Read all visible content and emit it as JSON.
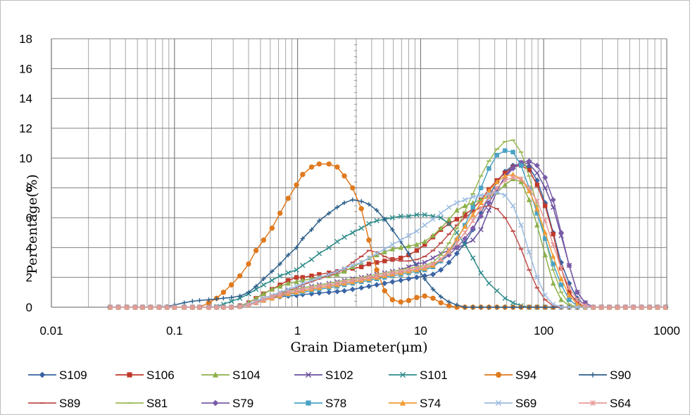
{
  "chart_data": {
    "type": "line",
    "title": "",
    "xlabel": "Grain Diameter(μm)",
    "ylabel": "Percentage(%)",
    "xscale": "log",
    "xlim": [
      0.01,
      1000
    ],
    "ylim": [
      0,
      18
    ],
    "x_ticks": [
      "0.01",
      "0.1",
      "1",
      "10",
      "100",
      "1000"
    ],
    "y_ticks": [
      "0",
      "2",
      "4",
      "6",
      "8",
      "10",
      "12",
      "14",
      "16",
      "18"
    ],
    "grid": true,
    "legend_position": "bottom",
    "x": [
      0.03,
      0.035,
      0.041,
      0.048,
      0.055,
      0.064,
      0.075,
      0.087,
      0.1,
      0.12,
      0.14,
      0.16,
      0.19,
      0.22,
      0.25,
      0.29,
      0.34,
      0.4,
      0.46,
      0.53,
      0.62,
      0.72,
      0.84,
      0.98,
      1.1,
      1.3,
      1.5,
      1.8,
      2.1,
      2.4,
      2.8,
      3.3,
      3.8,
      4.4,
      5.1,
      5.9,
      6.9,
      8,
      9.3,
      10.8,
      12.6,
      14.6,
      17,
      19.7,
      22.9,
      26.6,
      30.9,
      35.9,
      41.7,
      48.5,
      56.3,
      65.5,
      76.1,
      88.4,
      102.7,
      119.4,
      138.7,
      161.2,
      187.4,
      217.7,
      253,
      294,
      341.8,
      397.2,
      461.6,
      536.5,
      623.5,
      724.6,
      842,
      978.6
    ],
    "series": [
      {
        "name": "S109",
        "color": "#3a64a4",
        "marker": "diamond",
        "values": [
          0,
          0,
          0,
          0,
          0,
          0,
          0,
          0,
          0,
          0,
          0,
          0,
          0,
          0,
          0,
          0,
          0.1,
          0.2,
          0.35,
          0.5,
          0.6,
          0.7,
          0.75,
          0.8,
          0.85,
          0.9,
          0.95,
          1.0,
          1.05,
          1.1,
          1.2,
          1.3,
          1.4,
          1.5,
          1.6,
          1.7,
          1.8,
          1.9,
          2.0,
          2.1,
          2.2,
          2.5,
          3.0,
          3.6,
          4.3,
          5.2,
          6.3,
          7.4,
          8.4,
          9.1,
          9.5,
          9.6,
          9.4,
          8.5,
          7.0,
          5.0,
          3.0,
          1.6,
          0.6,
          0.1,
          0,
          0,
          0,
          0,
          0,
          0,
          0,
          0,
          0,
          0
        ]
      },
      {
        "name": "S106",
        "color": "#c0392b",
        "marker": "square",
        "values": [
          0,
          0,
          0,
          0,
          0,
          0,
          0,
          0,
          0,
          0,
          0,
          0,
          0,
          0,
          0,
          0,
          0.1,
          0.3,
          0.6,
          0.9,
          1.2,
          1.5,
          1.8,
          2.0,
          2.0,
          2.1,
          2.2,
          2.3,
          2.4,
          2.5,
          2.6,
          2.7,
          2.9,
          3.0,
          3.1,
          3.2,
          3.3,
          3.5,
          3.8,
          4.2,
          4.7,
          5.2,
          5.6,
          5.9,
          6.2,
          6.6,
          7.2,
          7.9,
          8.5,
          9.0,
          9.4,
          9.5,
          9.2,
          8.2,
          6.8,
          4.9,
          2.6,
          1.0,
          0.3,
          0,
          0,
          0,
          0,
          0,
          0,
          0,
          0,
          0,
          0,
          0
        ]
      },
      {
        "name": "S104",
        "color": "#8db04a",
        "marker": "triangle",
        "values": [
          0,
          0,
          0,
          0,
          0,
          0,
          0,
          0,
          0,
          0,
          0,
          0,
          0,
          0,
          0,
          0,
          0.1,
          0.3,
          0.6,
          0.9,
          1.2,
          1.4,
          1.6,
          1.7,
          1.8,
          1.9,
          2.0,
          2.1,
          2.2,
          2.4,
          2.7,
          3.0,
          3.3,
          3.5,
          3.7,
          3.9,
          4.0,
          4.1,
          4.2,
          4.4,
          4.8,
          5.3,
          5.9,
          6.5,
          6.8,
          7.0,
          7.2,
          7.4,
          7.7,
          8.2,
          8.6,
          8.4,
          7.2,
          5.5,
          3.5,
          1.6,
          0.5,
          0.1,
          0,
          0,
          0,
          0,
          0,
          0,
          0,
          0,
          0,
          0,
          0,
          0
        ]
      },
      {
        "name": "S102",
        "color": "#6a4f9c",
        "marker": "x",
        "values": [
          0,
          0,
          0,
          0,
          0,
          0,
          0,
          0,
          0,
          0,
          0,
          0,
          0,
          0,
          0,
          0,
          0.05,
          0.2,
          0.4,
          0.6,
          0.8,
          1.0,
          1.1,
          1.2,
          1.3,
          1.4,
          1.5,
          1.6,
          1.7,
          1.8,
          1.9,
          2.0,
          2.1,
          2.2,
          2.3,
          2.4,
          2.5,
          2.7,
          2.9,
          3.0,
          3.3,
          3.6,
          3.8,
          4.0,
          4.2,
          4.5,
          5.2,
          6.5,
          7.8,
          8.8,
          9.4,
          9.7,
          9.6,
          9.0,
          8.0,
          6.7,
          4.8,
          2.8,
          1.0,
          0.3,
          0,
          0,
          0,
          0,
          0,
          0,
          0,
          0,
          0,
          0
        ]
      },
      {
        "name": "S101",
        "color": "#2e8b8b",
        "marker": "x",
        "values": [
          0,
          0,
          0,
          0,
          0,
          0,
          0,
          0,
          0,
          0,
          0,
          0,
          0,
          0.05,
          0.2,
          0.4,
          0.6,
          0.9,
          1.2,
          1.5,
          1.8,
          2.1,
          2.3,
          2.5,
          2.8,
          3.2,
          3.6,
          4.0,
          4.4,
          4.7,
          5.0,
          5.3,
          5.6,
          5.8,
          5.9,
          6.0,
          6.1,
          6.1,
          6.2,
          6.2,
          6.1,
          6.0,
          5.6,
          5.0,
          4.2,
          3.3,
          2.3,
          1.6,
          1.1,
          0.6,
          0.3,
          0.1,
          0,
          0,
          0,
          0,
          0,
          0,
          0,
          0,
          0,
          0,
          0,
          0,
          0,
          0,
          0,
          0,
          0,
          0
        ]
      },
      {
        "name": "S94",
        "color": "#e07a1f",
        "marker": "circle",
        "values": [
          0,
          0,
          0,
          0,
          0,
          0,
          0,
          0,
          0,
          0,
          0,
          0,
          0.3,
          0.6,
          1.0,
          1.5,
          2.1,
          2.9,
          3.8,
          4.5,
          5.3,
          6.3,
          7.3,
          8.2,
          8.9,
          9.4,
          9.6,
          9.6,
          9.4,
          8.8,
          8.0,
          6.6,
          4.5,
          2.5,
          1.1,
          0.5,
          0.35,
          0.45,
          0.65,
          0.75,
          0.6,
          0.3,
          0.1,
          0,
          0,
          0,
          0,
          0,
          0,
          0,
          0,
          0,
          0,
          0,
          0,
          0,
          0,
          0,
          0,
          0,
          0,
          0,
          0,
          0,
          0,
          0,
          0,
          0,
          0,
          0
        ]
      },
      {
        "name": "S90",
        "color": "#2c5f8a",
        "marker": "plus",
        "values": [
          0,
          0,
          0,
          0,
          0,
          0,
          0,
          0.05,
          0.15,
          0.3,
          0.4,
          0.45,
          0.5,
          0.55,
          0.6,
          0.65,
          0.75,
          1.0,
          1.4,
          1.9,
          2.4,
          2.9,
          3.5,
          4.0,
          4.6,
          5.2,
          5.8,
          6.3,
          6.7,
          7.0,
          7.2,
          7.1,
          6.9,
          6.5,
          5.9,
          5.2,
          4.4,
          3.6,
          2.7,
          1.9,
          1.2,
          0.7,
          0.35,
          0.15,
          0,
          0,
          0,
          0,
          0,
          0,
          0,
          0,
          0,
          0,
          0,
          0,
          0,
          0,
          0,
          0,
          0,
          0,
          0,
          0,
          0,
          0,
          0,
          0,
          0,
          0
        ]
      },
      {
        "name": "S89",
        "color": "#c0504d",
        "marker": "dash",
        "values": [
          0,
          0,
          0,
          0,
          0,
          0,
          0,
          0,
          0,
          0,
          0,
          0,
          0,
          0,
          0,
          0,
          0.05,
          0.15,
          0.3,
          0.5,
          0.7,
          0.9,
          1.1,
          1.3,
          1.5,
          1.7,
          1.9,
          2.1,
          2.3,
          2.6,
          3.0,
          3.4,
          3.8,
          3.7,
          3.4,
          3.2,
          3.1,
          3.1,
          3.2,
          3.4,
          3.8,
          4.3,
          4.9,
          5.5,
          6.0,
          6.4,
          6.7,
          6.8,
          6.6,
          6.0,
          5.1,
          3.9,
          2.5,
          1.3,
          0.5,
          0.1,
          0,
          0,
          0,
          0,
          0,
          0,
          0,
          0,
          0,
          0,
          0,
          0,
          0,
          0
        ]
      },
      {
        "name": "S81",
        "color": "#9bbb59",
        "marker": "dash",
        "values": [
          0,
          0,
          0,
          0,
          0,
          0,
          0,
          0,
          0,
          0,
          0,
          0,
          0,
          0,
          0,
          0,
          0.05,
          0.2,
          0.4,
          0.6,
          0.8,
          1.0,
          1.1,
          1.2,
          1.3,
          1.4,
          1.5,
          1.6,
          1.7,
          1.8,
          1.9,
          2.0,
          2.1,
          2.2,
          2.3,
          2.4,
          2.5,
          2.6,
          2.7,
          2.8,
          3.0,
          3.5,
          4.3,
          5.3,
          6.4,
          7.6,
          8.8,
          9.8,
          10.6,
          11.1,
          11.2,
          10.4,
          8.8,
          6.8,
          4.6,
          2.5,
          1.0,
          0.2,
          0,
          0,
          0,
          0,
          0,
          0,
          0,
          0,
          0,
          0,
          0,
          0
        ]
      },
      {
        "name": "S79",
        "color": "#7a5ca8",
        "marker": "diamond",
        "values": [
          0,
          0,
          0,
          0,
          0,
          0,
          0,
          0,
          0,
          0,
          0,
          0,
          0,
          0,
          0,
          0,
          0.05,
          0.15,
          0.3,
          0.5,
          0.65,
          0.8,
          0.9,
          1.0,
          1.1,
          1.2,
          1.3,
          1.4,
          1.5,
          1.6,
          1.7,
          1.8,
          1.9,
          2.0,
          2.1,
          2.2,
          2.3,
          2.4,
          2.5,
          2.6,
          2.8,
          3.1,
          3.5,
          4.0,
          4.6,
          5.3,
          6.1,
          7.0,
          7.9,
          8.7,
          9.3,
          9.7,
          9.8,
          9.5,
          8.7,
          7.2,
          5.0,
          2.8,
          1.0,
          0.3,
          0,
          0,
          0,
          0,
          0,
          0,
          0,
          0,
          0,
          0
        ]
      },
      {
        "name": "S78",
        "color": "#4aa3c4",
        "marker": "square",
        "values": [
          0,
          0,
          0,
          0,
          0,
          0,
          0,
          0,
          0,
          0,
          0,
          0,
          0,
          0,
          0,
          0,
          0.05,
          0.15,
          0.3,
          0.45,
          0.6,
          0.75,
          0.85,
          0.95,
          1.0,
          1.1,
          1.2,
          1.3,
          1.4,
          1.5,
          1.6,
          1.7,
          1.8,
          1.9,
          2.0,
          2.1,
          2.2,
          2.3,
          2.4,
          2.5,
          2.7,
          3.1,
          3.7,
          4.5,
          5.5,
          6.7,
          8.0,
          9.3,
          10.2,
          10.5,
          10.4,
          9.5,
          8.0,
          6.3,
          4.6,
          2.9,
          1.5,
          0.5,
          0.1,
          0,
          0,
          0,
          0,
          0,
          0,
          0,
          0,
          0,
          0,
          0
        ]
      },
      {
        "name": "S74",
        "color": "#f39c34",
        "marker": "triangle",
        "values": [
          0,
          0,
          0,
          0,
          0,
          0,
          0,
          0,
          0,
          0,
          0,
          0,
          0,
          0,
          0,
          0,
          0.05,
          0.15,
          0.3,
          0.45,
          0.6,
          0.75,
          0.9,
          1.0,
          1.1,
          1.2,
          1.3,
          1.4,
          1.5,
          1.6,
          1.7,
          1.8,
          1.9,
          2.0,
          2.1,
          2.2,
          2.3,
          2.4,
          2.5,
          2.6,
          2.8,
          3.2,
          3.8,
          4.6,
          5.4,
          6.2,
          7.0,
          7.8,
          8.4,
          8.8,
          8.9,
          8.6,
          7.8,
          6.6,
          5.0,
          3.4,
          1.9,
          0.8,
          0.2,
          0,
          0,
          0,
          0,
          0,
          0,
          0,
          0,
          0,
          0,
          0
        ]
      },
      {
        "name": "S69",
        "color": "#9cbbe0",
        "marker": "x",
        "values": [
          0,
          0,
          0,
          0,
          0,
          0,
          0,
          0,
          0,
          0,
          0,
          0,
          0,
          0,
          0,
          0,
          0.05,
          0.2,
          0.4,
          0.6,
          0.8,
          1.0,
          1.2,
          1.4,
          1.6,
          1.8,
          2.0,
          2.2,
          2.4,
          2.6,
          2.8,
          3.0,
          3.3,
          3.6,
          3.9,
          4.2,
          4.5,
          4.8,
          5.1,
          5.5,
          5.9,
          6.3,
          6.7,
          7.0,
          7.2,
          7.4,
          7.5,
          7.6,
          7.7,
          7.5,
          6.8,
          5.5,
          3.7,
          2.0,
          0.8,
          0.2,
          0,
          0,
          0,
          0,
          0,
          0,
          0,
          0,
          0,
          0,
          0,
          0,
          0,
          0
        ]
      },
      {
        "name": "S64",
        "color": "#e79a9a",
        "marker": "star",
        "values": [
          0,
          0,
          0,
          0,
          0,
          0,
          0,
          0,
          0,
          0,
          0,
          0,
          0,
          0,
          0,
          0,
          0.05,
          0.15,
          0.3,
          0.5,
          0.7,
          0.85,
          1.0,
          1.1,
          1.2,
          1.3,
          1.4,
          1.5,
          1.6,
          1.7,
          1.8,
          1.9,
          2.0,
          2.1,
          2.2,
          2.3,
          2.4,
          2.5,
          2.6,
          2.7,
          2.9,
          3.2,
          3.7,
          4.3,
          5.0,
          5.8,
          6.6,
          7.4,
          8.0,
          8.5,
          8.7,
          8.6,
          8.0,
          7.1,
          5.8,
          4.2,
          2.6,
          1.3,
          0.5,
          0.1,
          0,
          0,
          0,
          0,
          0,
          0,
          0,
          0,
          0,
          0
        ]
      }
    ]
  }
}
